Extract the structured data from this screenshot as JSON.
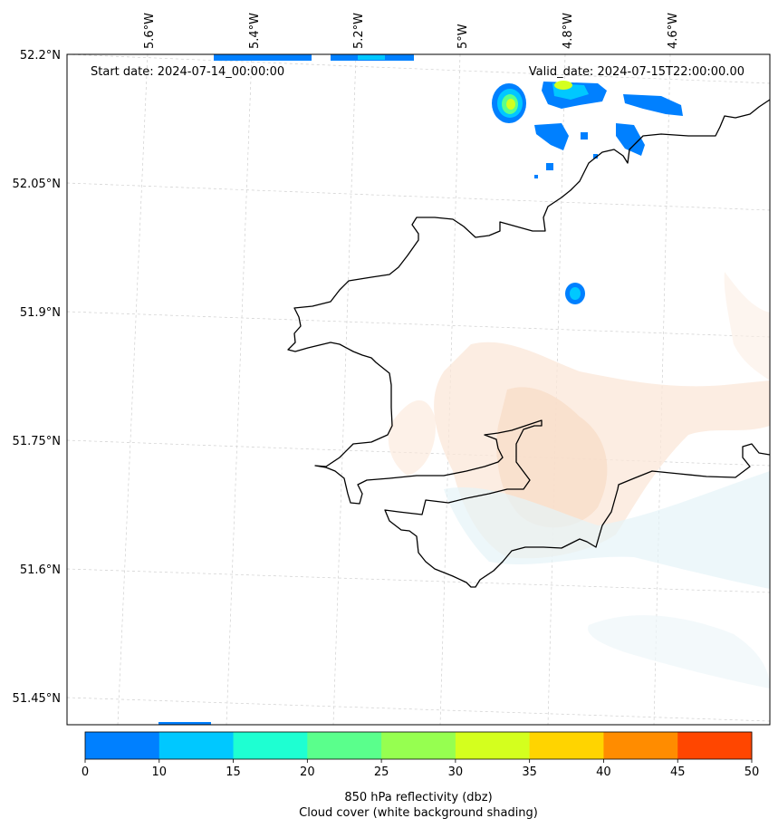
{
  "map": {
    "start_label": "Start date: 2024-07-14_00:00:00",
    "valid_label": "Valid_date: 2024-07-15T22:00:00.00",
    "longitude_labels": [
      "5.6°W",
      "5.4°W",
      "5.2°W",
      "5°W",
      "4.8°W",
      "4.6°W"
    ],
    "latitude_labels": [
      "52.2°N",
      "52.05°N",
      "51.9°N",
      "51.75°N",
      "51.6°N",
      "51.45°N"
    ],
    "gridlines": true,
    "coastline_color": "#000000"
  },
  "colorbar": {
    "ticks": [
      "0",
      "10",
      "15",
      "20",
      "25",
      "30",
      "35",
      "40",
      "45",
      "50"
    ],
    "colors": [
      "#0080ff",
      "#00c8ff",
      "#1effd2",
      "#5aff8c",
      "#96ff50",
      "#d4ff1e",
      "#ffd400",
      "#ff8c00",
      "#ff4600"
    ],
    "label_line1": "850 hPa reflectivity (dbz)",
    "label_line2": "Cloud cover (white background shading)"
  }
}
